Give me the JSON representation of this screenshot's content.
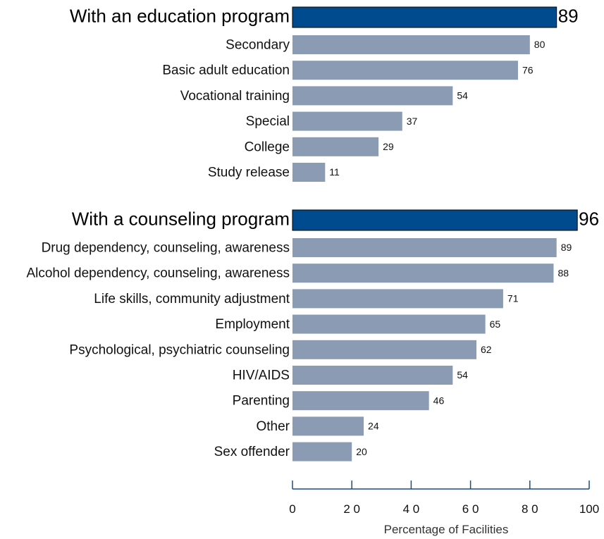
{
  "chart_data": {
    "type": "bar",
    "orientation": "horizontal",
    "xlabel": "Percentage of Facilities",
    "xlim": [
      0,
      100
    ],
    "xticks": [
      "0",
      "2 0",
      "4 0",
      "6 0",
      "8 0",
      "100"
    ],
    "xtick_values": [
      0,
      20,
      40,
      60,
      80,
      100
    ],
    "groups": [
      {
        "label": "With an education program",
        "value": 89,
        "items": [
          {
            "label": "Secondary",
            "value": 80
          },
          {
            "label": "Basic adult education",
            "value": 76
          },
          {
            "label": "Vocational training",
            "value": 54
          },
          {
            "label": "Special",
            "value": 37
          },
          {
            "label": "College",
            "value": 29
          },
          {
            "label": "Study release",
            "value": 11
          }
        ]
      },
      {
        "label": "With a counseling program",
        "value": 96,
        "items": [
          {
            "label": "Drug dependency, counseling, awareness",
            "value": 89
          },
          {
            "label": "Alcohol dependency, counseling, awareness",
            "value": 88
          },
          {
            "label": "Life skills, community adjustment",
            "value": 71
          },
          {
            "label": "Employment",
            "value": 65
          },
          {
            "label": "Psychological, psychiatric counseling",
            "value": 62
          },
          {
            "label": "HIV/AIDS",
            "value": 54
          },
          {
            "label": "Parenting",
            "value": 46
          },
          {
            "label": "Other",
            "value": 24
          },
          {
            "label": "Sex offender",
            "value": 20
          }
        ]
      }
    ],
    "colors": {
      "main_bar": "#004b8d",
      "sub_bar": "#8a9bb3",
      "axis": "#1a4d80"
    }
  }
}
